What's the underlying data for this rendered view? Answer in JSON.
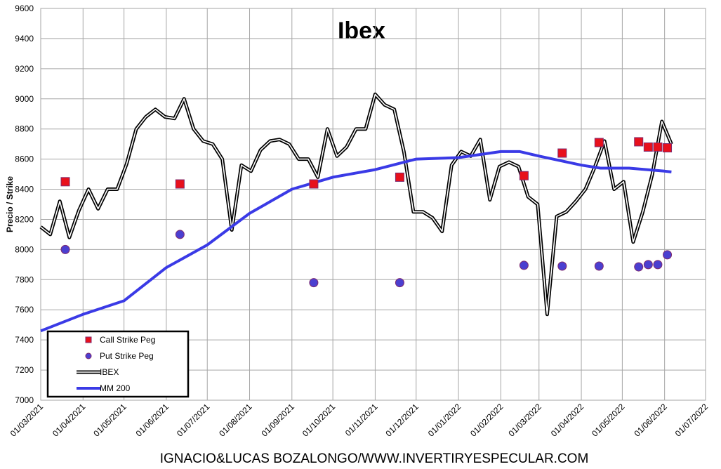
{
  "chart_data": {
    "type": "line",
    "title": "Ibex",
    "ylabel": "Precio / Strike",
    "footer": "IGNACIO&LUCAS BOZALONGO/WWW.INVERTIRYESPECULAR.COM",
    "xlim": [
      "01/03/2021",
      "01/07/2022"
    ],
    "xticks": [
      "01/03/2021",
      "01/04/2021",
      "01/05/2021",
      "01/06/2021",
      "01/07/2021",
      "01/08/2021",
      "01/09/2021",
      "01/10/2021",
      "01/11/2021",
      "01/12/2021",
      "01/01/2022",
      "01/02/2022",
      "01/03/2022",
      "01/04/2022",
      "01/05/2022",
      "01/06/2022",
      "01/07/2022"
    ],
    "ylim": [
      7000,
      9600
    ],
    "yticks": [
      7000,
      7200,
      7400,
      7600,
      7800,
      8000,
      8200,
      8400,
      8600,
      8800,
      9000,
      9200,
      9400,
      9600
    ],
    "grid": true,
    "legend": "lower left",
    "series": [
      {
        "name": "Call Strike Peg",
        "type": "scatter",
        "marker": "square",
        "color": "#e8101c",
        "x": [
          "19/03/2021",
          "11/06/2021",
          "17/09/2021",
          "19/11/2021",
          "18/02/2022",
          "18/03/2022",
          "14/04/2022",
          "13/05/2022",
          "20/05/2022",
          "27/05/2022",
          "03/06/2022"
        ],
        "values": [
          8450,
          8435,
          8435,
          8480,
          8490,
          8640,
          8710,
          8715,
          8680,
          8680,
          8675
        ]
      },
      {
        "name": "Put Strike Peg",
        "type": "scatter",
        "marker": "circle",
        "color": "#4b3fd0",
        "x": [
          "19/03/2021",
          "11/06/2021",
          "17/09/2021",
          "19/11/2021",
          "18/02/2022",
          "18/03/2022",
          "14/04/2022",
          "13/05/2022",
          "20/05/2022",
          "27/05/2022",
          "03/06/2022"
        ],
        "values": [
          8000,
          8100,
          7780,
          7780,
          7895,
          7890,
          7890,
          7885,
          7900,
          7900,
          7965
        ]
      },
      {
        "name": "IBEX",
        "type": "line",
        "line_style": "double",
        "color": "#000000",
        "x": [
          "01/03/2021",
          "08/03/2021",
          "15/03/2021",
          "22/03/2021",
          "29/03/2021",
          "05/04/2021",
          "12/04/2021",
          "19/04/2021",
          "26/04/2021",
          "03/05/2021",
          "10/05/2021",
          "17/05/2021",
          "24/05/2021",
          "31/05/2021",
          "07/06/2021",
          "14/06/2021",
          "21/06/2021",
          "28/06/2021",
          "05/07/2021",
          "12/07/2021",
          "19/07/2021",
          "26/07/2021",
          "02/08/2021",
          "09/08/2021",
          "16/08/2021",
          "23/08/2021",
          "30/08/2021",
          "06/09/2021",
          "13/09/2021",
          "20/09/2021",
          "27/09/2021",
          "04/10/2021",
          "11/10/2021",
          "18/10/2021",
          "25/10/2021",
          "01/11/2021",
          "08/11/2021",
          "15/11/2021",
          "22/11/2021",
          "29/11/2021",
          "06/12/2021",
          "13/12/2021",
          "20/12/2021",
          "27/12/2021",
          "03/01/2022",
          "10/01/2022",
          "17/01/2022",
          "24/01/2022",
          "31/01/2022",
          "07/02/2022",
          "14/02/2022",
          "21/02/2022",
          "28/02/2022",
          "07/03/2022",
          "14/03/2022",
          "21/03/2022",
          "28/03/2022",
          "04/04/2022",
          "11/04/2022",
          "18/04/2022",
          "25/04/2022",
          "02/05/2022",
          "09/05/2022",
          "16/05/2022",
          "23/05/2022",
          "30/05/2022",
          "06/06/2022"
        ],
        "values": [
          8150,
          8100,
          8320,
          8080,
          8260,
          8400,
          8270,
          8400,
          8400,
          8570,
          8800,
          8880,
          8930,
          8880,
          8870,
          9000,
          8800,
          8720,
          8700,
          8600,
          8130,
          8560,
          8520,
          8660,
          8720,
          8730,
          8700,
          8600,
          8600,
          8480,
          8800,
          8620,
          8680,
          8800,
          8800,
          9030,
          8960,
          8930,
          8650,
          8250,
          8250,
          8210,
          8120,
          8560,
          8650,
          8620,
          8730,
          8330,
          8550,
          8580,
          8550,
          8350,
          8300,
          7570,
          8220,
          8250,
          8320,
          8400,
          8550,
          8720,
          8400,
          8450,
          8050,
          8250,
          8500,
          8850,
          8700
        ]
      },
      {
        "name": "MM 200",
        "type": "line",
        "color": "#3a3ae6",
        "x": [
          "01/03/2021",
          "01/04/2021",
          "01/05/2021",
          "01/06/2021",
          "01/07/2021",
          "01/08/2021",
          "01/09/2021",
          "01/10/2021",
          "01/11/2021",
          "01/12/2021",
          "01/01/2022",
          "01/02/2022",
          "15/02/2022",
          "01/03/2022",
          "01/04/2022",
          "15/04/2022",
          "06/05/2022",
          "01/06/2022",
          "06/06/2022"
        ],
        "values": [
          7460,
          7570,
          7660,
          7880,
          8030,
          8240,
          8400,
          8480,
          8530,
          8600,
          8610,
          8650,
          8650,
          8620,
          8560,
          8540,
          8540,
          8520,
          8515
        ]
      }
    ]
  }
}
